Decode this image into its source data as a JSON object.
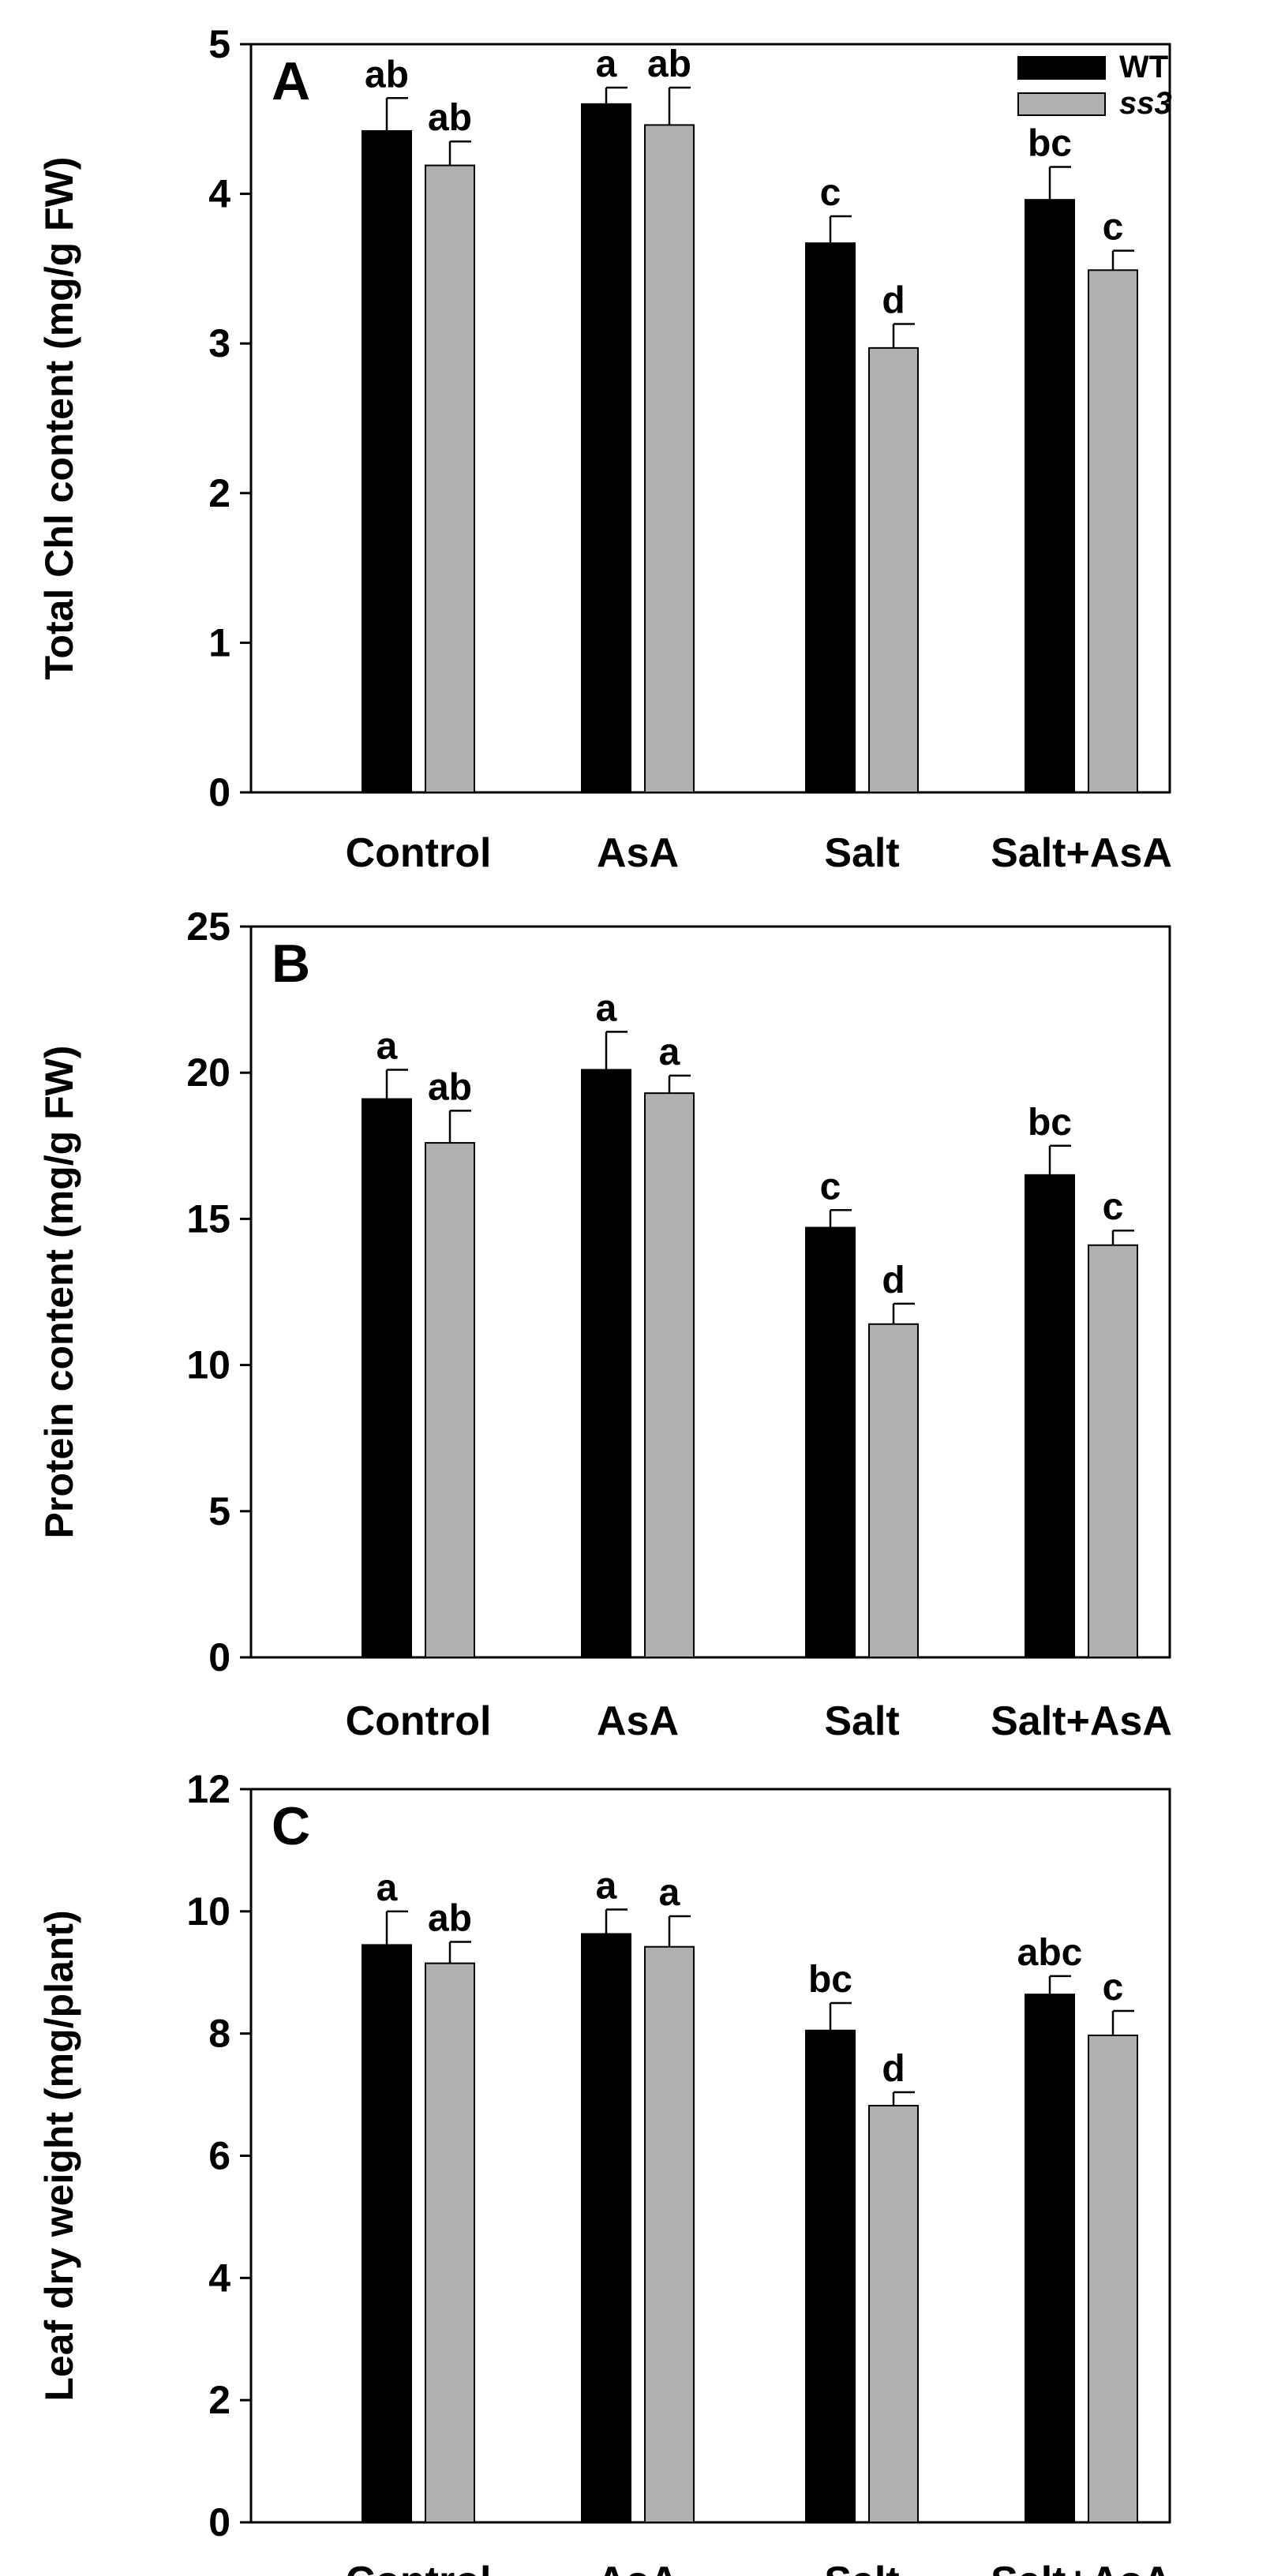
{
  "chart_data": [
    {
      "type": "bar",
      "panel": "A",
      "ylabel": "Total Chl content (mg/g FW)",
      "ylim": [
        0,
        5
      ],
      "yticks": [
        0,
        1,
        2,
        3,
        4,
        5
      ],
      "categories": [
        "Control",
        "AsA",
        "Salt",
        "Salt+AsA"
      ],
      "series": [
        {
          "name": "WT",
          "color": "#000000",
          "values": [
            4.42,
            4.6,
            3.67,
            3.96
          ],
          "errors": [
            0.22,
            0.11,
            0.18,
            0.22
          ],
          "letters": [
            "ab",
            "a",
            "c",
            "bc"
          ]
        },
        {
          "name": "ss3",
          "color": "#b0b0b0",
          "values": [
            4.19,
            4.46,
            2.97,
            3.49
          ],
          "errors": [
            0.16,
            0.25,
            0.16,
            0.13
          ],
          "letters": [
            "ab",
            "ab",
            "d",
            "c"
          ]
        }
      ],
      "legend": {
        "position": "top-right",
        "entries": [
          "WT",
          "ss3"
        ]
      }
    },
    {
      "type": "bar",
      "panel": "B",
      "ylabel": "Protein content (mg/g FW)",
      "ylim": [
        0,
        25
      ],
      "yticks": [
        0,
        5,
        10,
        15,
        20,
        25
      ],
      "categories": [
        "Control",
        "AsA",
        "Salt",
        "Salt+AsA"
      ],
      "series": [
        {
          "name": "WT",
          "color": "#000000",
          "values": [
            19.1,
            20.1,
            14.7,
            16.5
          ],
          "errors": [
            1.0,
            1.3,
            0.6,
            1.0
          ],
          "letters": [
            "a",
            "a",
            "c",
            "bc"
          ]
        },
        {
          "name": "ss3",
          "color": "#b0b0b0",
          "values": [
            17.6,
            19.3,
            11.4,
            14.1
          ],
          "errors": [
            1.1,
            0.6,
            0.7,
            0.5
          ],
          "letters": [
            "ab",
            "a",
            "d",
            "c"
          ]
        }
      ]
    },
    {
      "type": "bar",
      "panel": "C",
      "ylabel": "Leaf dry weight (mg/plant)",
      "ylim": [
        0,
        12
      ],
      "yticks": [
        0,
        2,
        4,
        6,
        8,
        10,
        12
      ],
      "categories": [
        "Control",
        "AsA",
        "Salt",
        "Salt+AsA"
      ],
      "series": [
        {
          "name": "WT",
          "color": "#000000",
          "values": [
            9.45,
            9.63,
            8.05,
            8.64
          ],
          "errors": [
            0.55,
            0.4,
            0.45,
            0.3
          ],
          "letters": [
            "a",
            "a",
            "bc",
            "abc"
          ]
        },
        {
          "name": "ss3",
          "color": "#b0b0b0",
          "values": [
            9.15,
            9.42,
            6.82,
            7.97
          ],
          "errors": [
            0.35,
            0.5,
            0.22,
            0.4
          ],
          "letters": [
            "ab",
            "a",
            "d",
            "c"
          ]
        }
      ]
    }
  ]
}
